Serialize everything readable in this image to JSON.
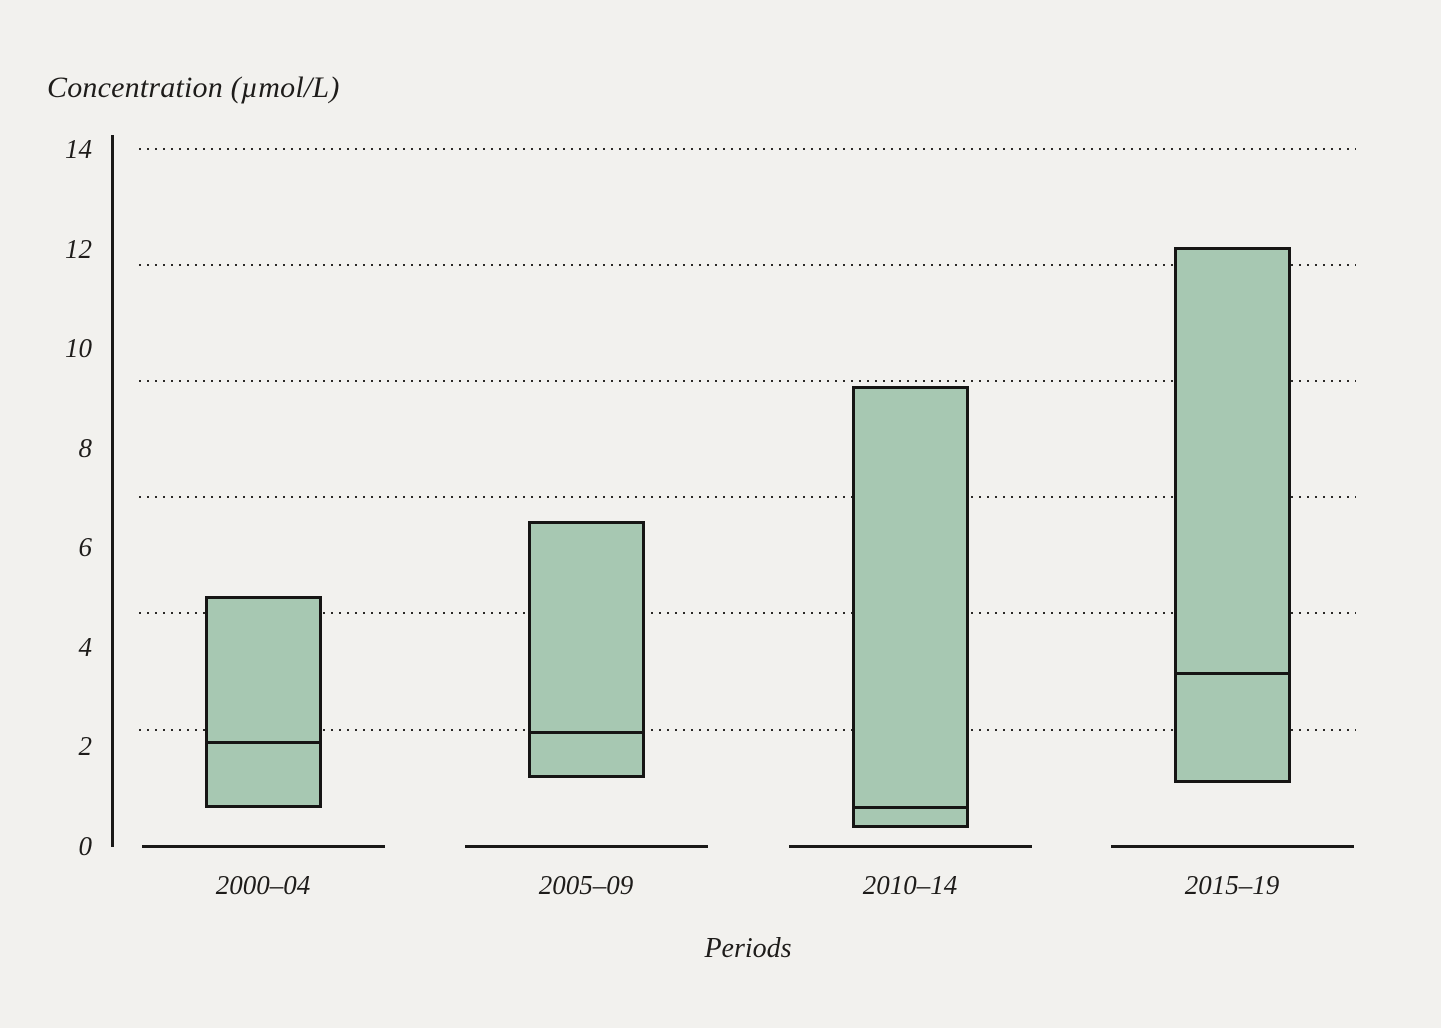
{
  "chart_data": {
    "type": "bar",
    "subtype": "floating-range-bars-with-median",
    "title": "",
    "ylabel": "Concentration (µmol/L)",
    "xlabel": "Periods",
    "categories": [
      "2000–04",
      "2005–09",
      "2010–14",
      "2015–19"
    ],
    "series": [
      {
        "name": "min",
        "values": [
          0.8,
          1.4,
          0.4,
          1.3
        ]
      },
      {
        "name": "median",
        "values": [
          2.1,
          2.3,
          0.8,
          3.5
        ]
      },
      {
        "name": "max",
        "values": [
          5.0,
          6.5,
          9.2,
          12.0
        ]
      }
    ],
    "ylim": [
      0,
      14
    ],
    "yticks": [
      0,
      2,
      4,
      6,
      8,
      10,
      12,
      14
    ],
    "gridline_values": [
      14,
      11.67,
      9.33,
      7,
      4.67,
      2.33
    ],
    "grid": "horizontal-dotted",
    "legend": "none",
    "colors": {
      "background": "#f2f1ee",
      "bar_fill": "#a7c8b2",
      "bar_border": "#161514",
      "axis": "#1b1a18",
      "text": "#1e1c1a",
      "gridline_dots": "#2b2927"
    }
  }
}
